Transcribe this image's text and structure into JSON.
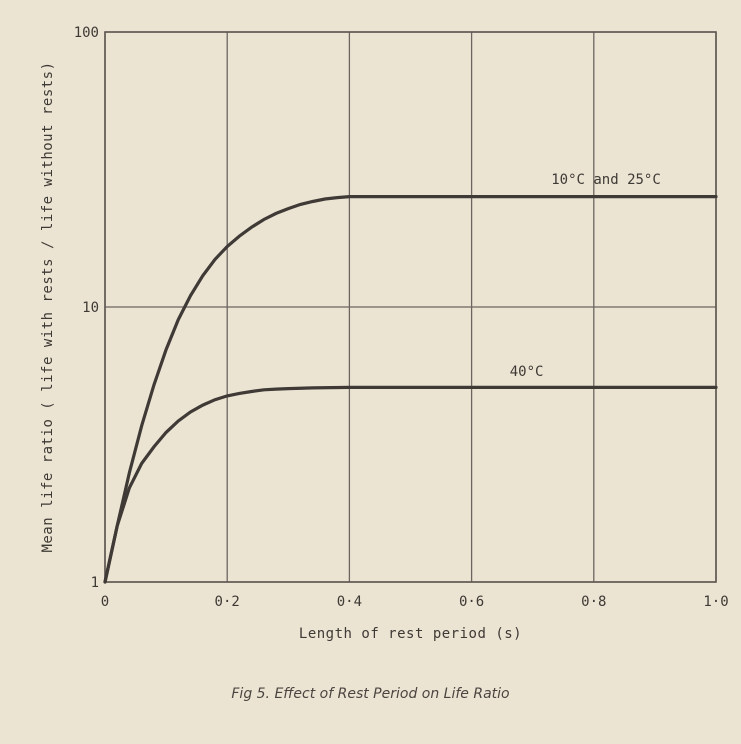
{
  "caption": "Fig 5. Effect of Rest Period on Life Ratio",
  "chart_data": {
    "type": "line",
    "title": "Fig 5. Effect of Rest Period on Life Ratio",
    "xlabel": "Length of rest period (s)",
    "ylabel": "Mean life ratio ( life with rests / life without rests)",
    "xlim": [
      0,
      1.0
    ],
    "ylim": [
      1,
      100
    ],
    "yscale": "log",
    "grid": true,
    "x_ticks": [
      0,
      0.2,
      0.4,
      0.6,
      0.8,
      1.0
    ],
    "x_tick_labels": [
      "0",
      "0·2",
      "0·4",
      "0·6",
      "0·8",
      "1·0"
    ],
    "y_ticks": [
      1,
      10,
      100
    ],
    "y_tick_labels": [
      "1",
      "10",
      "100"
    ],
    "series": [
      {
        "name": "10°C and 25°C",
        "color": "#3f3a36",
        "x": [
          0,
          0.02,
          0.04,
          0.06,
          0.08,
          0.1,
          0.12,
          0.14,
          0.16,
          0.18,
          0.2,
          0.22,
          0.24,
          0.26,
          0.28,
          0.3,
          0.32,
          0.34,
          0.36,
          0.38,
          0.4,
          0.5,
          0.6,
          0.7,
          0.8,
          0.9,
          1.0
        ],
        "values": [
          1.0,
          1.6,
          2.5,
          3.7,
          5.2,
          7.0,
          9.0,
          11.0,
          13.0,
          14.9,
          16.6,
          18.1,
          19.5,
          20.8,
          21.9,
          22.8,
          23.6,
          24.2,
          24.7,
          25.0,
          25.2,
          25.2,
          25.2,
          25.2,
          25.2,
          25.2,
          25.2
        ]
      },
      {
        "name": "40°C",
        "color": "#3f3a36",
        "x": [
          0,
          0.02,
          0.04,
          0.06,
          0.08,
          0.1,
          0.12,
          0.14,
          0.16,
          0.18,
          0.2,
          0.22,
          0.24,
          0.26,
          0.28,
          0.3,
          0.34,
          0.4,
          0.5,
          0.6,
          0.7,
          0.8,
          0.9,
          1.0
        ],
        "values": [
          1.0,
          1.6,
          2.2,
          2.7,
          3.1,
          3.5,
          3.85,
          4.15,
          4.4,
          4.6,
          4.75,
          4.85,
          4.93,
          5.0,
          5.03,
          5.05,
          5.08,
          5.1,
          5.1,
          5.1,
          5.1,
          5.1,
          5.1,
          5.1
        ]
      }
    ],
    "annotations": [
      {
        "text": "10°C and 25°C",
        "x": 0.82,
        "y": 28
      },
      {
        "text": "40°C",
        "x": 0.69,
        "y": 5.6
      }
    ]
  }
}
